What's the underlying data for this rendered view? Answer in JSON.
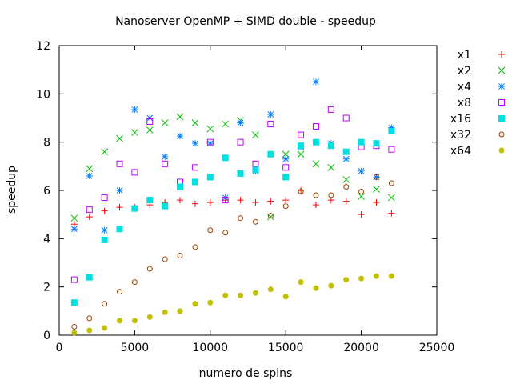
{
  "chart_data": {
    "type": "scatter",
    "title": "Nanoserver OpenMP + SIMD double - speedup",
    "xlabel": "numero de spins",
    "ylabel": "speedup",
    "xlim": [
      0,
      25000
    ],
    "ylim": [
      0,
      12
    ],
    "xticks": [
      0,
      5000,
      10000,
      15000,
      20000,
      25000
    ],
    "yticks": [
      0,
      2,
      4,
      6,
      8,
      10,
      12
    ],
    "grid": false,
    "legend_position": "top-right, outside plot",
    "x": [
      1000,
      2000,
      3000,
      4000,
      5000,
      6000,
      7000,
      8000,
      9000,
      10000,
      11000,
      12000,
      13000,
      14000,
      15000,
      16000,
      17000,
      18000,
      19000,
      20000,
      21000,
      22000
    ],
    "series": [
      {
        "name": "x1",
        "marker": "plus",
        "color": "#ff0000",
        "values": [
          4.6,
          4.9,
          5.15,
          5.3,
          5.3,
          5.4,
          5.5,
          5.6,
          5.45,
          5.5,
          5.6,
          5.6,
          5.5,
          5.55,
          5.6,
          6.0,
          5.4,
          5.6,
          5.55,
          5.0,
          5.5,
          5.05
        ]
      },
      {
        "name": "x2",
        "marker": "cross",
        "color": "#00c000",
        "values": [
          4.85,
          6.9,
          7.6,
          8.15,
          8.4,
          8.5,
          8.8,
          9.05,
          8.8,
          8.55,
          8.75,
          8.9,
          8.3,
          4.9,
          7.5,
          7.5,
          7.1,
          6.95,
          6.45,
          5.75,
          6.05,
          5.7
        ]
      },
      {
        "name": "x4",
        "marker": "star",
        "color": "#0080ff",
        "values": [
          4.4,
          6.6,
          4.35,
          6.0,
          9.35,
          9.0,
          7.4,
          8.25,
          7.95,
          7.95,
          5.7,
          8.8,
          6.8,
          9.15,
          7.3,
          7.8,
          10.5,
          7.95,
          7.3,
          6.8,
          6.55,
          8.6
        ]
      },
      {
        "name": "x8",
        "marker": "open-square",
        "color": "#c000ff",
        "values": [
          2.3,
          5.2,
          5.7,
          7.1,
          6.75,
          8.85,
          7.1,
          6.35,
          6.95,
          8.0,
          5.6,
          8.0,
          7.1,
          8.75,
          6.95,
          8.3,
          8.65,
          9.35,
          9.0,
          7.8,
          7.85,
          7.7
        ]
      },
      {
        "name": "x16",
        "marker": "filled-square",
        "color": "#00e0e0",
        "values": [
          1.35,
          2.4,
          3.95,
          4.4,
          5.25,
          5.6,
          5.35,
          6.15,
          6.35,
          6.55,
          7.35,
          6.7,
          6.85,
          7.5,
          6.55,
          7.85,
          8.0,
          7.85,
          7.6,
          8.0,
          7.95,
          8.45
        ]
      },
      {
        "name": "x32",
        "marker": "open-circle",
        "color": "#a04000",
        "values": [
          0.35,
          0.7,
          1.3,
          1.8,
          2.2,
          2.75,
          3.15,
          3.3,
          3.65,
          4.35,
          4.25,
          4.85,
          4.7,
          4.95,
          5.35,
          5.95,
          5.8,
          5.8,
          6.15,
          5.95,
          6.55,
          6.3
        ]
      },
      {
        "name": "x64",
        "marker": "filled-circle",
        "color": "#c0c000",
        "values": [
          0.1,
          0.2,
          0.3,
          0.6,
          0.6,
          0.75,
          0.95,
          1.0,
          1.3,
          1.35,
          1.65,
          1.65,
          1.75,
          1.9,
          1.6,
          2.2,
          1.95,
          2.05,
          2.3,
          2.35,
          2.45,
          2.45
        ]
      }
    ]
  }
}
